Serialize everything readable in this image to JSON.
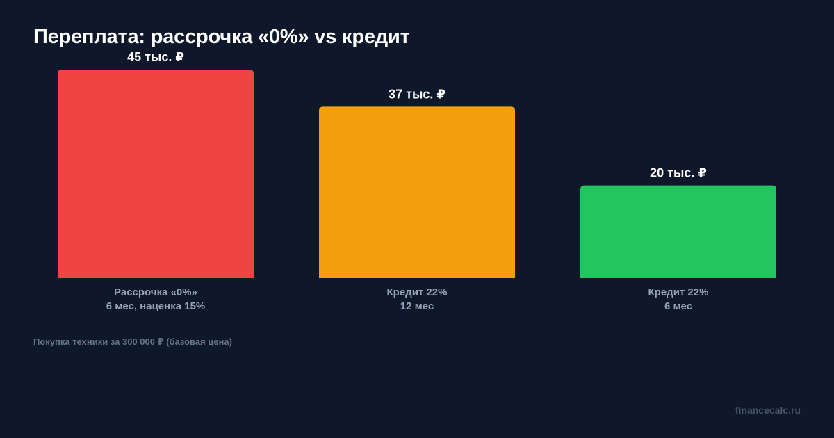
{
  "title": "Переплата: рассрочка «0%» vs кредит",
  "note": "Покупка техники за 300 000 ₽ (базовая цена)",
  "brand": "financecalc.ru",
  "colors": {
    "background": "#0f172a",
    "value_label": "#ffffff",
    "category_label": "#94a3b8"
  },
  "chart_data": {
    "type": "bar",
    "title": "Переплата: рассрочка «0%» vs кредит",
    "xlabel": "",
    "ylabel": "",
    "grid": false,
    "ylim": [
      0,
      45
    ],
    "categories": [
      [
        "Рассрочка «0%»",
        "6 мес, наценка 15%"
      ],
      [
        "Кредит 22%",
        "12 мес"
      ],
      [
        "Кредит 22%",
        "6 мес"
      ]
    ],
    "values": [
      45,
      37,
      20
    ],
    "value_labels": [
      "45 тыс. ₽",
      "37 тыс. ₽",
      "20 тыс. ₽"
    ],
    "bar_colors": [
      "#ef4444",
      "#f59e0b",
      "#22c55e"
    ]
  }
}
